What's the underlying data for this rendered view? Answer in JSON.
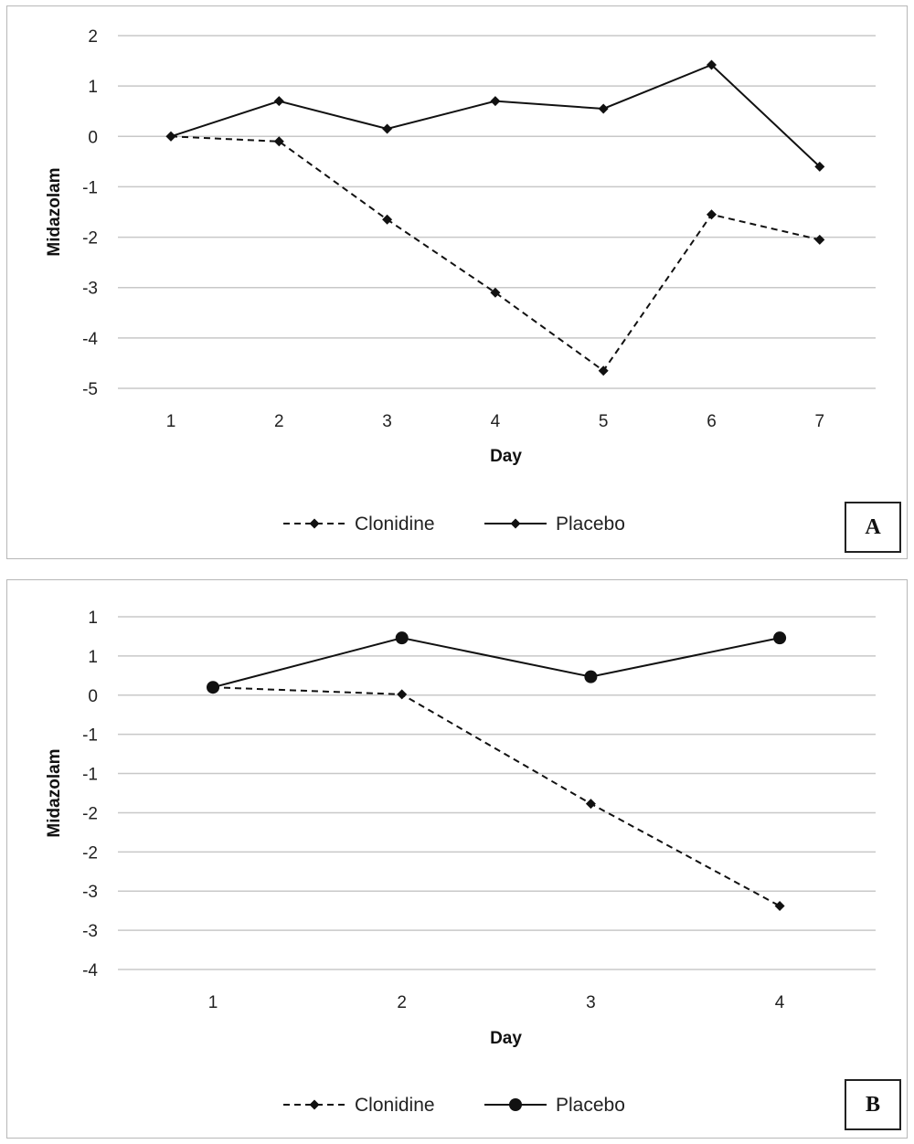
{
  "chart_data": [
    {
      "type": "line",
      "panel_label": "A",
      "xlabel": "Day",
      "ylabel": "Midazolam",
      "categories": [
        "1",
        "2",
        "3",
        "4",
        "5",
        "6",
        "7"
      ],
      "y_ticks": [
        "2",
        "1",
        "0",
        "-1",
        "-2",
        "-3",
        "-4",
        "-5"
      ],
      "ylim": [
        -5,
        2
      ],
      "grid": "horizontal",
      "legend": "bottom",
      "series": [
        {
          "name": "Clonidine",
          "style": "dashed",
          "marker": "diamond",
          "color": "#111111",
          "values": [
            0,
            -0.1,
            -1.65,
            -3.1,
            -4.65,
            -1.55,
            -2.05
          ]
        },
        {
          "name": "Placebo",
          "style": "solid",
          "marker": "diamond",
          "color": "#111111",
          "values": [
            0,
            0.7,
            0.15,
            0.7,
            0.55,
            1.42,
            -0.6
          ]
        }
      ]
    },
    {
      "type": "line",
      "panel_label": "B",
      "xlabel": "Day",
      "ylabel": "Midazolam",
      "categories": [
        "1",
        "2",
        "3",
        "4"
      ],
      "y_ticks": [
        "1",
        "1",
        "0",
        "-1",
        "-1",
        "-2",
        "-2",
        "-3",
        "-3",
        "-4"
      ],
      "ylim": [
        -4,
        1
      ],
      "grid": "horizontal",
      "legend": "bottom",
      "series": [
        {
          "name": "Clonidine",
          "style": "dashed",
          "marker": "diamond",
          "color": "#111111",
          "values": [
            0,
            -0.1,
            -1.65,
            -3.1
          ]
        },
        {
          "name": "Placebo",
          "style": "solid",
          "marker": "circle",
          "color": "#111111",
          "values": [
            0,
            0.7,
            0.15,
            0.7
          ]
        }
      ]
    }
  ]
}
